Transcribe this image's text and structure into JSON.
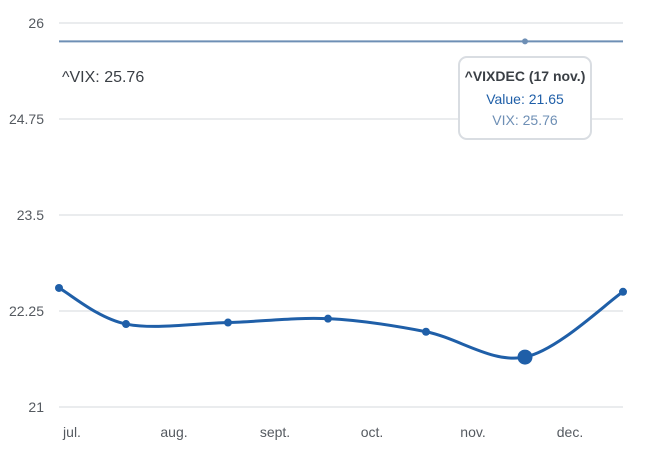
{
  "chart_data": {
    "type": "line",
    "title": "",
    "xlabel": "",
    "ylabel": "",
    "ylim": [
      21,
      26
    ],
    "y_ticks": [
      "26",
      "24.75",
      "23.5",
      "22.25",
      "21"
    ],
    "y_tick_values": [
      26,
      24.75,
      23.5,
      22.25,
      21
    ],
    "x_tick_labels": [
      "jul.",
      "aug.",
      "sept.",
      "oct.",
      "nov.",
      "dec."
    ],
    "grid": true,
    "legend": "none",
    "series": [
      {
        "name": "^VIXDEC",
        "color": "#1f5fa8",
        "x": [
          "jul.",
          "aug.",
          "sept.",
          "oct.",
          "nov.",
          "17 nov.",
          "dec."
        ],
        "values": [
          22.55,
          22.08,
          22.1,
          22.15,
          21.98,
          21.65,
          22.5
        ]
      },
      {
        "name": "^VIX",
        "color": "#6e8fb5",
        "value": 25.76
      }
    ],
    "reference_label": "^VIX: 25.76",
    "tooltip": {
      "title": "^VIXDEC (17 nov.)",
      "value_line": "Value: 21.65",
      "vix_line": "VIX: 25.76"
    }
  }
}
